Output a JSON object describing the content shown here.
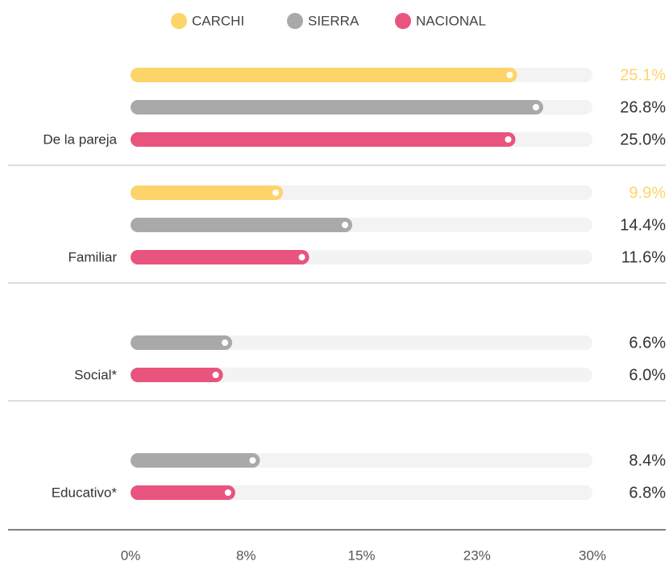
{
  "chart_data": {
    "type": "bar",
    "orientation": "horizontal",
    "categories": [
      "De la pareja",
      "Familiar",
      "Social*",
      "Educativo*"
    ],
    "series": [
      {
        "name": "CARCHI",
        "color": "#fdd46a",
        "values": [
          25.1,
          9.9,
          null,
          null
        ],
        "value_labels": [
          "25.1%",
          "9.9%",
          null,
          null
        ]
      },
      {
        "name": "SIERRA",
        "color": "#a9a9a9",
        "values": [
          26.8,
          14.4,
          6.6,
          8.4
        ],
        "value_labels": [
          "26.8%",
          "14.4%",
          "6.6%",
          "8.4%"
        ]
      },
      {
        "name": "NACIONAL",
        "color": "#e9547f",
        "values": [
          25.0,
          11.6,
          6.0,
          6.8
        ],
        "value_labels": [
          "25.0%",
          "11.6%",
          "6.0%",
          "6.8%"
        ]
      }
    ],
    "xlim": [
      0,
      30
    ],
    "xticks": [
      {
        "value": 0,
        "label": "0%"
      },
      {
        "value": 7.5,
        "label": "8%"
      },
      {
        "value": 15,
        "label": "15%"
      },
      {
        "value": 22.5,
        "label": "23%"
      },
      {
        "value": 30,
        "label": "30%"
      }
    ],
    "legend": "top"
  }
}
